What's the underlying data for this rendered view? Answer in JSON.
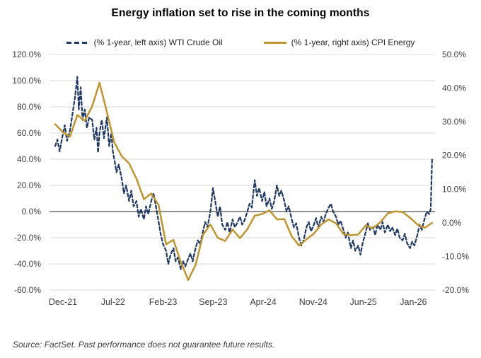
{
  "chart": {
    "title": "Energy inflation set to rise in the coming months",
    "source": "Source: FactSet. Past performance does not guarantee future results."
  },
  "chart_data": {
    "type": "line",
    "title": "Energy inflation set to rise in the coming months",
    "x_unit": "t = months since Dec-21 (fractional t = intra-month daily observations)",
    "x_tick_labels": [
      "Dec-21",
      "Jul-22",
      "Feb-23",
      "Sep-23",
      "Apr-24",
      "Nov-24",
      "Jun-25",
      "Jan-26"
    ],
    "x_tick_t": [
      0,
      7,
      14,
      21,
      28,
      35,
      42,
      49
    ],
    "grid": "horizontal gridlines at left-axis ticks; zero line darker",
    "legend_position": "top-center",
    "left_axis": {
      "ticks": [
        "120.0%",
        "100.0%",
        "80.0%",
        "60.0%",
        "40.0%",
        "20.0%",
        "0.0%",
        "-20.0%",
        "-40.0%",
        "-60.0%"
      ],
      "values": [
        120,
        100,
        80,
        60,
        40,
        20,
        0,
        -20,
        -40,
        -60
      ],
      "min": -60,
      "max": 120
    },
    "right_axis": {
      "ticks": [
        "50.0%",
        "40.0%",
        "30.0%",
        "20.0%",
        "10.0%",
        "0.0%",
        "-10.0%",
        "-20.0%"
      ],
      "values": [
        50,
        40,
        30,
        20,
        10,
        0,
        -10,
        -20
      ],
      "min": -20,
      "max": 50
    },
    "colors": {
      "wti": "#1f3864",
      "cpi": "#c0952f",
      "grid": "#d9d9d9",
      "zero_line": "#6b6b6b",
      "axis_text": "#404040"
    },
    "series": [
      {
        "name": "(% 1-year, left axis) WTI Crude Oil",
        "axis": "left",
        "color": "#1f3864",
        "line_style": "dashed",
        "points": [
          [
            0,
            50
          ],
          [
            0.3,
            55
          ],
          [
            0.6,
            46
          ],
          [
            1,
            58
          ],
          [
            1.3,
            66
          ],
          [
            1.6,
            54
          ],
          [
            2,
            62
          ],
          [
            2.35,
            75
          ],
          [
            2.7,
            88
          ],
          [
            3,
            103
          ],
          [
            3.2,
            78
          ],
          [
            3.45,
            95
          ],
          [
            3.7,
            70
          ],
          [
            4,
            78
          ],
          [
            4.3,
            64
          ],
          [
            4.6,
            72
          ],
          [
            5,
            70
          ],
          [
            5.3,
            55
          ],
          [
            5.6,
            64
          ],
          [
            5.8,
            45
          ],
          [
            6,
            60
          ],
          [
            6.3,
            70
          ],
          [
            6.6,
            56
          ],
          [
            7,
            72
          ],
          [
            7.3,
            50
          ],
          [
            7.6,
            60
          ],
          [
            7.8,
            46
          ],
          [
            8,
            40
          ],
          [
            8.3,
            30
          ],
          [
            8.6,
            36
          ],
          [
            9,
            25
          ],
          [
            9.3,
            14
          ],
          [
            9.6,
            20
          ],
          [
            10,
            8
          ],
          [
            10.3,
            16
          ],
          [
            10.6,
            4
          ],
          [
            11,
            8
          ],
          [
            11.3,
            -4
          ],
          [
            11.6,
            2
          ],
          [
            12,
            -6
          ],
          [
            12.3,
            4
          ],
          [
            12.6,
            -2
          ],
          [
            13,
            8
          ],
          [
            13.3,
            14
          ],
          [
            13.6,
            5
          ],
          [
            14,
            -8
          ],
          [
            14.3,
            -18
          ],
          [
            14.6,
            -25
          ],
          [
            15,
            -30
          ],
          [
            15.3,
            -40
          ],
          [
            15.6,
            -33
          ],
          [
            16,
            -28
          ],
          [
            16.3,
            -38
          ],
          [
            16.6,
            -35
          ],
          [
            17,
            -44
          ],
          [
            17.3,
            -38
          ],
          [
            17.6,
            -42
          ],
          [
            18,
            -36
          ],
          [
            18.3,
            -32
          ],
          [
            18.6,
            -38
          ],
          [
            19,
            -28
          ],
          [
            19.3,
            -22
          ],
          [
            19.6,
            -25
          ],
          [
            20,
            -15
          ],
          [
            20.3,
            -8
          ],
          [
            20.6,
            -12
          ],
          [
            21,
            0
          ],
          [
            21.35,
            18
          ],
          [
            21.7,
            6
          ],
          [
            22,
            -4
          ],
          [
            22.3,
            4
          ],
          [
            22.6,
            -10
          ],
          [
            23,
            -14
          ],
          [
            23.3,
            -8
          ],
          [
            23.6,
            -16
          ],
          [
            24,
            -6
          ],
          [
            24.3,
            -12
          ],
          [
            24.6,
            -9
          ],
          [
            25,
            -4
          ],
          [
            25.3,
            -10
          ],
          [
            25.6,
            -7
          ],
          [
            26,
            0
          ],
          [
            26.3,
            6
          ],
          [
            26.6,
            3
          ],
          [
            27,
            24
          ],
          [
            27.3,
            12
          ],
          [
            27.6,
            18
          ],
          [
            28,
            8
          ],
          [
            28.3,
            15
          ],
          [
            28.6,
            4
          ],
          [
            29,
            10
          ],
          [
            29.3,
            2
          ],
          [
            29.6,
            7
          ],
          [
            30,
            20
          ],
          [
            30.3,
            12
          ],
          [
            30.6,
            16
          ],
          [
            31,
            8
          ],
          [
            31.3,
            0
          ],
          [
            31.6,
            4
          ],
          [
            32,
            -6
          ],
          [
            32.3,
            -12
          ],
          [
            32.6,
            -9
          ],
          [
            33,
            -20
          ],
          [
            33.3,
            -26
          ],
          [
            33.6,
            -22
          ],
          [
            34,
            -12
          ],
          [
            34.3,
            -8
          ],
          [
            34.6,
            -15
          ],
          [
            35,
            -10
          ],
          [
            35.3,
            -5
          ],
          [
            35.6,
            -12
          ],
          [
            36,
            -4
          ],
          [
            36.3,
            -8
          ],
          [
            36.6,
            -2
          ],
          [
            37,
            3
          ],
          [
            37.3,
            6
          ],
          [
            37.6,
            0
          ],
          [
            38,
            -4
          ],
          [
            38.3,
            -10
          ],
          [
            38.6,
            -7
          ],
          [
            39,
            -14
          ],
          [
            39.3,
            -20
          ],
          [
            39.6,
            -16
          ],
          [
            40,
            -28
          ],
          [
            40.3,
            -22
          ],
          [
            40.6,
            -30
          ],
          [
            41,
            -26
          ],
          [
            41.3,
            -33
          ],
          [
            41.6,
            -24
          ],
          [
            42,
            -16
          ],
          [
            42.3,
            -9
          ],
          [
            42.6,
            -14
          ],
          [
            43,
            -12
          ],
          [
            43.3,
            -18
          ],
          [
            43.6,
            -10
          ],
          [
            44,
            -14
          ],
          [
            44.3,
            -8
          ],
          [
            44.6,
            -16
          ],
          [
            45,
            -10
          ],
          [
            45.3,
            -15
          ],
          [
            45.6,
            -12
          ],
          [
            46,
            -18
          ],
          [
            46.3,
            -13
          ],
          [
            46.6,
            -20
          ],
          [
            47,
            -22
          ],
          [
            47.3,
            -17
          ],
          [
            47.6,
            -24
          ],
          [
            48,
            -28
          ],
          [
            48.3,
            -23
          ],
          [
            48.6,
            -26
          ],
          [
            49,
            -18
          ],
          [
            49.3,
            -10
          ],
          [
            49.6,
            -14
          ],
          [
            50,
            -5
          ],
          [
            50.3,
            0
          ],
          [
            50.6,
            -2
          ],
          [
            50.8,
            2
          ],
          [
            51,
            41
          ]
        ]
      },
      {
        "name": "(% 1-year, right axis) CPI Energy",
        "axis": "right",
        "color": "#c0952f",
        "line_style": "solid",
        "t_start": 0,
        "t_step": 1,
        "values": [
          29.3,
          27.0,
          25.6,
          32.0,
          30.3,
          34.6,
          41.6,
          32.9,
          23.8,
          19.8,
          17.6,
          13.1,
          7.0,
          8.7,
          5.2,
          -6.4,
          -5.1,
          -11.7,
          -17.0,
          -12.5,
          -3.6,
          -0.5,
          -4.5,
          -5.4,
          -2.0,
          -4.6,
          -1.9,
          2.1,
          2.6,
          3.7,
          1.0,
          1.1,
          -4.0,
          -6.8,
          -4.9,
          -3.2,
          -0.5,
          1.0,
          -0.2,
          -3.3,
          -3.7,
          -3.5,
          -0.8,
          -1.6,
          0.2,
          2.8,
          3.4,
          3.2,
          1.5,
          -0.5,
          -1.5,
          0.0
        ]
      }
    ]
  }
}
